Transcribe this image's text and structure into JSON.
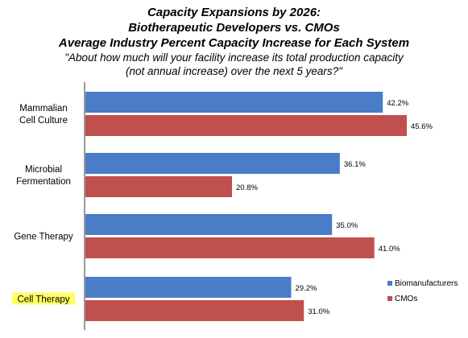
{
  "chart_data": {
    "type": "bar",
    "orientation": "horizontal",
    "title": [
      "Capacity Expansions by 2026:",
      "Biotherapeutic Developers vs. CMOs",
      "Average Industry Percent Capacity Increase for Each System"
    ],
    "subtitle": [
      "\"About how much will your facility increase its total production capacity",
      "(not annual increase) over the next 5 years?\""
    ],
    "categories": [
      [
        "Mammalian",
        "Cell Culture"
      ],
      [
        "Microbial",
        "Fermentation"
      ],
      [
        "Gene Therapy"
      ],
      [
        "Cell Therapy"
      ]
    ],
    "highlighted_category_index": 3,
    "highlight_color": "#ffff66",
    "series": [
      {
        "name": "Biomanufacturers",
        "color": "#4a7cc7",
        "values": [
          42.2,
          36.1,
          35.0,
          29.2
        ]
      },
      {
        "name": "CMOs",
        "color": "#c0504d",
        "values": [
          45.6,
          20.8,
          41.0,
          31.0
        ]
      }
    ],
    "value_suffix": "%",
    "value_decimals": 1,
    "xlim": [
      0,
      50
    ],
    "grid": false,
    "legend_position": "bottom-right"
  }
}
